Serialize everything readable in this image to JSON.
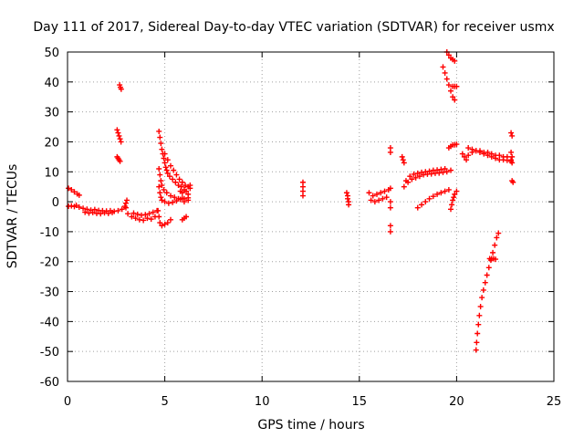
{
  "chart_data": {
    "type": "scatter",
    "title": "Day 111 of 2017, Sidereal Day-to-day VTEC variation (SDTVAR) for receiver usmx",
    "xlabel": "GPS time / hours",
    "ylabel": "SDTVAR / TECUs",
    "xlim": [
      0,
      25
    ],
    "ylim": [
      -60,
      50
    ],
    "xticks": [
      0,
      5,
      10,
      15,
      20,
      25
    ],
    "yticks": [
      -60,
      -50,
      -40,
      -30,
      -20,
      -10,
      0,
      10,
      20,
      30,
      40,
      50
    ],
    "grid": true,
    "marker": "plus",
    "color": "#ff0000",
    "segments": [
      {
        "name": "early-decay",
        "points": [
          [
            0.05,
            4.5
          ],
          [
            0.2,
            4.0
          ],
          [
            0.35,
            3.3
          ],
          [
            0.5,
            2.6
          ],
          [
            0.6,
            2.2
          ]
        ]
      },
      {
        "name": "early-base",
        "points": [
          [
            0.05,
            -1.5
          ],
          [
            0.2,
            -1.4
          ],
          [
            0.35,
            -1.6
          ],
          [
            0.45,
            -1.2
          ],
          [
            0.6,
            -1.8
          ],
          [
            0.8,
            -2.2
          ],
          [
            1.0,
            -2.5
          ],
          [
            1.2,
            -2.8
          ],
          [
            1.4,
            -2.6
          ],
          [
            1.6,
            -2.9
          ],
          [
            1.8,
            -3.0
          ],
          [
            2.0,
            -3.1
          ],
          [
            2.2,
            -3.0
          ],
          [
            2.4,
            -3.2
          ],
          [
            2.6,
            -3.0
          ],
          [
            2.8,
            -2.5
          ],
          [
            3.0,
            -2.0
          ]
        ]
      },
      {
        "name": "early-base-low",
        "points": [
          [
            0.9,
            -3.5
          ],
          [
            1.1,
            -3.8
          ],
          [
            1.3,
            -3.6
          ],
          [
            1.5,
            -3.9
          ],
          [
            1.7,
            -4.0
          ],
          [
            1.9,
            -3.7
          ],
          [
            2.1,
            -3.9
          ],
          [
            2.3,
            -3.6
          ]
        ]
      },
      {
        "name": "early-rise",
        "points": [
          [
            2.95,
            -1.5
          ],
          [
            3.0,
            -0.5
          ],
          [
            3.05,
            0.5
          ]
        ]
      },
      {
        "name": "dip-3-4",
        "points": [
          [
            3.1,
            -4.0
          ],
          [
            3.3,
            -5.0
          ],
          [
            3.5,
            -5.5
          ],
          [
            3.7,
            -6.0
          ],
          [
            3.9,
            -6.2
          ],
          [
            4.1,
            -5.5
          ],
          [
            4.3,
            -5.8
          ],
          [
            4.5,
            -5.0
          ]
        ]
      },
      {
        "name": "dip-3-4-b",
        "points": [
          [
            3.4,
            -3.8
          ],
          [
            3.6,
            -4.2
          ],
          [
            3.8,
            -4.5
          ],
          [
            4.0,
            -4.3
          ],
          [
            4.2,
            -4.0
          ],
          [
            4.4,
            -3.5
          ],
          [
            4.6,
            -3.0
          ]
        ]
      },
      {
        "name": "spike-2-7",
        "points": [
          [
            2.68,
            39.0
          ],
          [
            2.72,
            38.2
          ],
          [
            2.76,
            37.6
          ]
        ]
      },
      {
        "name": "mid-2-6",
        "points": [
          [
            2.55,
            24.0
          ],
          [
            2.6,
            23.0
          ],
          [
            2.65,
            22.0
          ],
          [
            2.7,
            21.0
          ],
          [
            2.75,
            20.0
          ]
        ]
      },
      {
        "name": "low-2-6",
        "points": [
          [
            2.55,
            15.0
          ],
          [
            2.6,
            14.5
          ],
          [
            2.65,
            14.0
          ],
          [
            2.7,
            13.5
          ]
        ]
      },
      {
        "name": "spike-4-8",
        "points": [
          [
            4.7,
            23.5
          ],
          [
            4.75,
            21.5
          ],
          [
            4.8,
            19.5
          ],
          [
            4.85,
            17.5
          ],
          [
            4.9,
            16.0
          ],
          [
            4.95,
            14.5
          ],
          [
            5.0,
            13.0
          ],
          [
            5.05,
            11.5
          ],
          [
            5.1,
            10.5
          ],
          [
            5.15,
            9.5
          ],
          [
            5.25,
            8.5
          ],
          [
            5.4,
            7.5
          ],
          [
            5.55,
            6.5
          ],
          [
            5.7,
            5.5
          ],
          [
            5.85,
            5.0
          ]
        ]
      },
      {
        "name": "curve-5-6",
        "points": [
          [
            5.0,
            16.0
          ],
          [
            5.15,
            14.0
          ],
          [
            5.3,
            12.0
          ],
          [
            5.45,
            10.5
          ],
          [
            5.6,
            9.0
          ],
          [
            5.75,
            7.5
          ],
          [
            5.9,
            6.5
          ],
          [
            6.05,
            5.5
          ],
          [
            6.2,
            5.0
          ]
        ]
      },
      {
        "name": "mid-4-8",
        "points": [
          [
            4.7,
            11.0
          ],
          [
            4.75,
            9.0
          ],
          [
            4.8,
            7.0
          ],
          [
            4.85,
            5.5
          ],
          [
            4.95,
            4.0
          ],
          [
            5.1,
            3.0
          ],
          [
            5.3,
            2.0
          ],
          [
            5.5,
            1.5
          ],
          [
            5.7,
            1.0
          ],
          [
            5.9,
            1.2
          ]
        ]
      },
      {
        "name": "low-4-8",
        "points": [
          [
            4.7,
            5.0
          ],
          [
            4.75,
            3.0
          ],
          [
            4.8,
            1.5
          ],
          [
            4.85,
            0.5
          ],
          [
            5.0,
            0.0
          ],
          [
            5.2,
            -0.5
          ],
          [
            5.4,
            -0.2
          ],
          [
            5.6,
            0.3
          ],
          [
            5.8,
            0.8
          ],
          [
            6.0,
            1.0
          ],
          [
            6.2,
            1.3
          ]
        ]
      },
      {
        "name": "neg-4-8",
        "points": [
          [
            4.65,
            -3.0
          ],
          [
            4.7,
            -5.0
          ],
          [
            4.75,
            -7.0
          ],
          [
            4.85,
            -8.0
          ],
          [
            5.0,
            -7.5
          ],
          [
            5.15,
            -7.0
          ],
          [
            5.3,
            -6.0
          ]
        ]
      },
      {
        "name": "neg-6",
        "points": [
          [
            5.9,
            -6.0
          ],
          [
            6.0,
            -5.5
          ],
          [
            6.1,
            -5.0
          ]
        ]
      },
      {
        "name": "cluster-6",
        "points": [
          [
            5.8,
            3.5
          ],
          [
            5.9,
            3.0
          ],
          [
            6.0,
            4.0
          ],
          [
            6.1,
            3.5
          ],
          [
            6.2,
            2.5
          ],
          [
            6.3,
            5.5
          ],
          [
            6.3,
            4.5
          ],
          [
            6.0,
            0.0
          ],
          [
            6.2,
            0.5
          ]
        ]
      },
      {
        "name": "noon-12",
        "points": [
          [
            12.1,
            6.5
          ],
          [
            12.1,
            5.0
          ],
          [
            12.1,
            3.5
          ],
          [
            12.1,
            2.0
          ]
        ]
      },
      {
        "name": "noon-14-4",
        "points": [
          [
            14.35,
            3.0
          ],
          [
            14.4,
            2.0
          ],
          [
            14.4,
            1.0
          ],
          [
            14.45,
            0.0
          ],
          [
            14.45,
            -1.0
          ]
        ]
      },
      {
        "name": "pm-16",
        "points": [
          [
            15.5,
            3.0
          ],
          [
            15.7,
            2.0
          ],
          [
            15.9,
            2.5
          ],
          [
            16.1,
            3.0
          ],
          [
            16.3,
            3.5
          ],
          [
            16.5,
            4.0
          ],
          [
            16.6,
            4.5
          ],
          [
            15.6,
            0.5
          ],
          [
            15.8,
            0.0
          ],
          [
            16.0,
            0.5
          ],
          [
            16.2,
            1.0
          ],
          [
            16.4,
            1.5
          ]
        ]
      },
      {
        "name": "pm-16-6",
        "points": [
          [
            16.6,
            18.0
          ],
          [
            16.6,
            16.5
          ],
          [
            16.6,
            0.0
          ],
          [
            16.6,
            -2.0
          ],
          [
            16.6,
            -8.0
          ],
          [
            16.6,
            -10.0
          ]
        ]
      },
      {
        "name": "pm-17-2",
        "points": [
          [
            17.2,
            15.0
          ],
          [
            17.25,
            14.0
          ],
          [
            17.3,
            13.0
          ]
        ]
      },
      {
        "name": "arc-17-20",
        "points": [
          [
            17.3,
            5.0
          ],
          [
            17.5,
            6.5
          ],
          [
            17.7,
            7.5
          ],
          [
            17.9,
            8.0
          ],
          [
            18.1,
            8.5
          ],
          [
            18.3,
            9.0
          ],
          [
            18.5,
            9.2
          ],
          [
            18.7,
            9.3
          ],
          [
            18.9,
            9.5
          ],
          [
            19.1,
            9.6
          ],
          [
            19.3,
            9.8
          ],
          [
            19.5,
            10.0
          ],
          [
            19.7,
            10.5
          ]
        ]
      },
      {
        "name": "arc-17-20-b",
        "points": [
          [
            17.4,
            7.0
          ],
          [
            17.6,
            8.5
          ],
          [
            17.8,
            9.2
          ],
          [
            18.0,
            9.5
          ],
          [
            18.2,
            9.8
          ],
          [
            18.4,
            10.0
          ],
          [
            18.6,
            10.2
          ],
          [
            18.8,
            10.5
          ],
          [
            19.0,
            10.6
          ],
          [
            19.2,
            10.8
          ],
          [
            19.4,
            11.0
          ]
        ]
      },
      {
        "name": "rise-18-20",
        "points": [
          [
            18.0,
            -2.0
          ],
          [
            18.2,
            -1.0
          ],
          [
            18.4,
            0.0
          ],
          [
            18.6,
            1.0
          ],
          [
            18.8,
            1.8
          ],
          [
            19.0,
            2.5
          ],
          [
            19.2,
            3.0
          ],
          [
            19.4,
            3.5
          ],
          [
            19.6,
            4.0
          ]
        ]
      },
      {
        "name": "steep-19",
        "points": [
          [
            19.3,
            45.0
          ],
          [
            19.4,
            43.0
          ],
          [
            19.5,
            41.0
          ],
          [
            19.6,
            39.0
          ],
          [
            19.7,
            37.0
          ],
          [
            19.8,
            35.0
          ],
          [
            19.9,
            34.0
          ]
        ]
      },
      {
        "name": "steep-19-b",
        "points": [
          [
            19.5,
            50.0
          ],
          [
            19.6,
            49.0
          ],
          [
            19.7,
            48.0
          ],
          [
            19.8,
            47.5
          ],
          [
            19.9,
            47.0
          ]
        ]
      },
      {
        "name": "dots-20",
        "points": [
          [
            19.8,
            38.5
          ],
          [
            19.9,
            38.5
          ],
          [
            20.0,
            38.5
          ]
        ]
      },
      {
        "name": "rise-19-20",
        "points": [
          [
            19.7,
            -2.5
          ],
          [
            19.75,
            -1.0
          ],
          [
            19.8,
            0.5
          ],
          [
            19.85,
            1.5
          ],
          [
            19.9,
            2.5
          ],
          [
            20.0,
            3.5
          ]
        ]
      },
      {
        "name": "flat-20",
        "points": [
          [
            19.6,
            18.0
          ],
          [
            19.7,
            18.5
          ],
          [
            19.8,
            19.0
          ],
          [
            19.9,
            19.0
          ],
          [
            20.0,
            19.2
          ]
        ]
      },
      {
        "name": "band-20-23",
        "points": [
          [
            20.3,
            16.0
          ],
          [
            20.4,
            15.0
          ],
          [
            20.5,
            14.0
          ],
          [
            20.6,
            15.5
          ],
          [
            20.8,
            16.5
          ],
          [
            21.0,
            17.0
          ],
          [
            21.2,
            16.5
          ],
          [
            21.4,
            16.0
          ],
          [
            21.6,
            15.5
          ],
          [
            21.8,
            15.0
          ],
          [
            22.0,
            14.5
          ],
          [
            22.2,
            14.0
          ],
          [
            22.4,
            14.0
          ],
          [
            22.6,
            13.8
          ],
          [
            22.8,
            13.5
          ]
        ]
      },
      {
        "name": "band-20-23-b",
        "points": [
          [
            20.6,
            18.0
          ],
          [
            20.8,
            17.5
          ],
          [
            21.0,
            17.0
          ],
          [
            21.2,
            17.0
          ],
          [
            21.4,
            16.5
          ],
          [
            21.6,
            16.5
          ],
          [
            21.8,
            16.0
          ],
          [
            22.0,
            15.5
          ],
          [
            22.2,
            15.5
          ],
          [
            22.4,
            15.0
          ],
          [
            22.6,
            15.0
          ],
          [
            22.8,
            14.0
          ]
        ]
      },
      {
        "name": "edge-22-8",
        "points": [
          [
            22.8,
            23.0
          ],
          [
            22.85,
            22.0
          ],
          [
            22.8,
            16.5
          ],
          [
            22.85,
            15.0
          ],
          [
            22.85,
            13.0
          ],
          [
            22.85,
            7.0
          ],
          [
            22.9,
            6.5
          ]
        ]
      },
      {
        "name": "dive-21",
        "points": [
          [
            21.0,
            -49.5
          ],
          [
            21.03,
            -47.0
          ],
          [
            21.07,
            -44.0
          ],
          [
            21.12,
            -41.0
          ],
          [
            21.17,
            -38.0
          ],
          [
            21.23,
            -35.0
          ],
          [
            21.3,
            -32.0
          ],
          [
            21.38,
            -29.5
          ],
          [
            21.47,
            -27.0
          ],
          [
            21.56,
            -24.5
          ],
          [
            21.66,
            -22.0
          ],
          [
            21.76,
            -19.5
          ],
          [
            21.86,
            -17.0
          ],
          [
            21.96,
            -14.5
          ],
          [
            22.06,
            -12.0
          ],
          [
            22.15,
            -10.5
          ]
        ]
      },
      {
        "name": "flat-21-7",
        "points": [
          [
            21.7,
            -19.0
          ],
          [
            21.8,
            -19.0
          ],
          [
            21.9,
            -19.0
          ],
          [
            22.0,
            -19.2
          ]
        ]
      }
    ]
  }
}
